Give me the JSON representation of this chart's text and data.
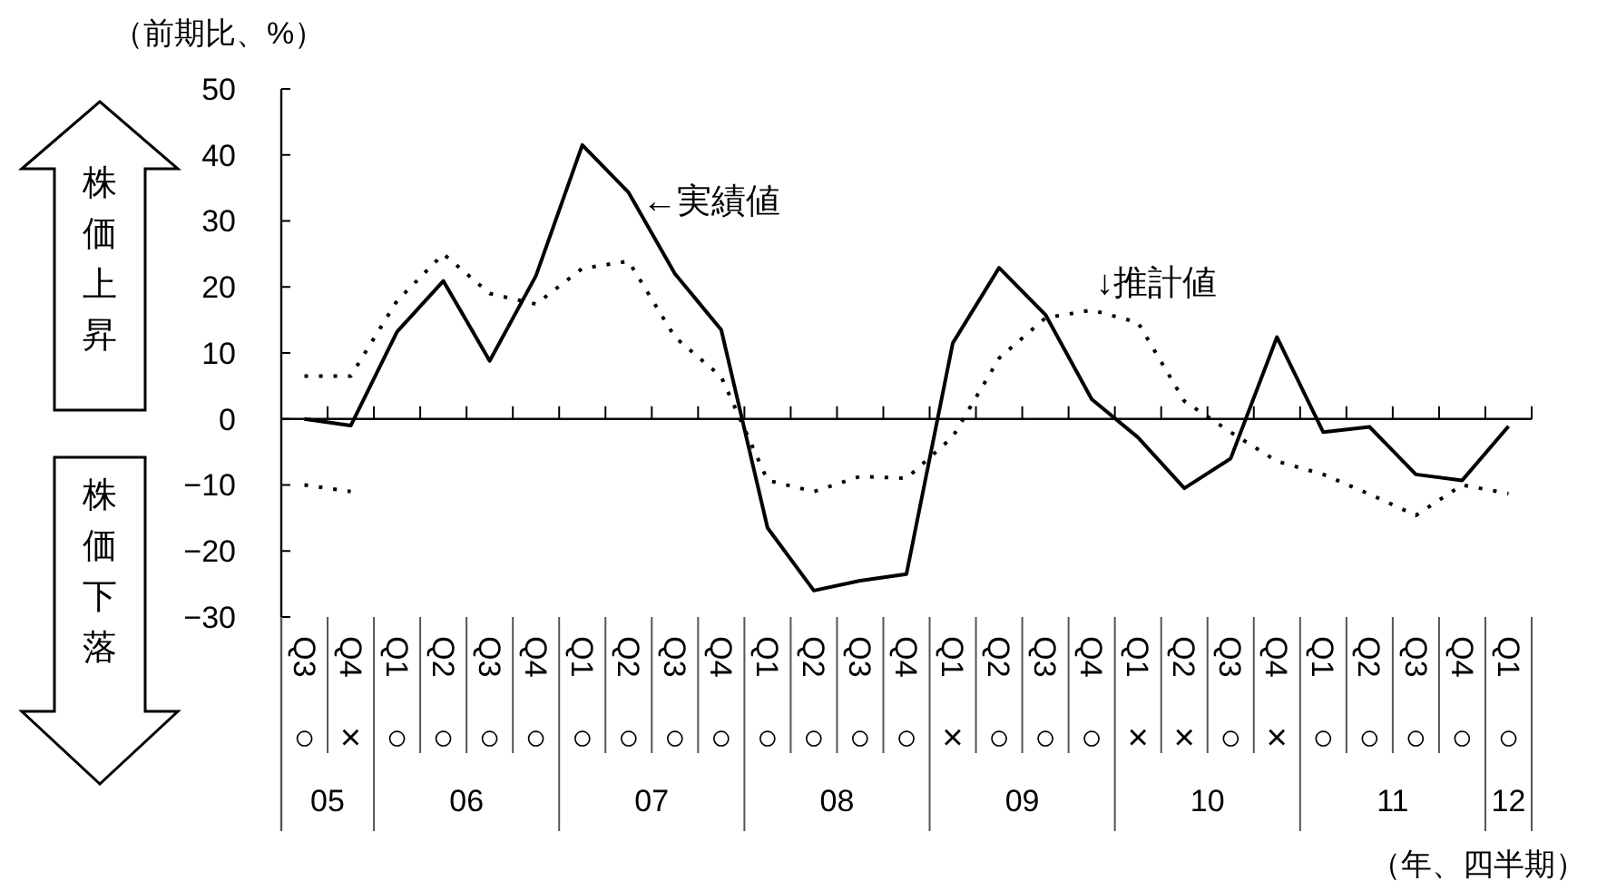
{
  "chart_data": {
    "type": "line",
    "ylabel": "（前期比、%）",
    "categories": [
      "Q3",
      "Q4",
      "Q1",
      "Q2",
      "Q3",
      "Q4",
      "Q1",
      "Q2",
      "Q3",
      "Q4",
      "Q1",
      "Q2",
      "Q3",
      "Q4",
      "Q1",
      "Q2",
      "Q3",
      "Q4",
      "Q1",
      "Q2",
      "Q3",
      "Q4",
      "Q1",
      "Q2",
      "Q3",
      "Q4",
      "Q1"
    ],
    "series": [
      {
        "color": "#000000",
        "line_style": "solid",
        "values": [
          0,
          -1,
          13.2,
          20.9,
          8.8,
          21.7,
          41.5,
          34.3,
          22,
          13.5,
          -16.5,
          -26,
          -24.5,
          -23.5,
          11.5,
          22.9,
          15.8,
          3,
          -2.8,
          -10.5,
          -6,
          12.4,
          -2,
          -1.2,
          -8.4,
          -9.3,
          -1.1
        ]
      },
      {
        "color": "#000000",
        "line_style": "dotted",
        "values": [
          6.5,
          6.5,
          17.9,
          25,
          19,
          17.4,
          22.8,
          23.9,
          12.4,
          6.4,
          -9.3,
          -11,
          -8.7,
          -9,
          -2.7,
          9.2,
          15.3,
          16.5,
          14.6,
          2.7,
          -2,
          -6.4,
          -8.4,
          -11.4,
          -14.6,
          -10,
          -11.3
        ]
      },
      {
        "color": "#000000",
        "line_style": "dotted",
        "values": [
          -10,
          -11,
          null,
          null,
          null,
          null,
          null,
          null,
          null,
          null,
          null,
          null,
          null,
          null,
          null,
          null,
          null,
          null,
          null,
          null,
          null,
          null,
          null,
          null,
          null,
          null,
          null
        ]
      }
    ],
    "ylim": [
      -30,
      50
    ],
    "yticks": [
      -30,
      -20,
      -10,
      0,
      10,
      20,
      30,
      40,
      50
    ],
    "marker": "none",
    "annotations": [
      "←実績値",
      "↓推計値",
      "株価上昇",
      "株価下落",
      "○",
      "×",
      "○",
      "○",
      "○",
      "○",
      "○",
      "○",
      "○",
      "○",
      "○",
      "○",
      "○",
      "○",
      "×",
      "○",
      "○",
      "○",
      "×",
      "×",
      "○",
      "×",
      "○",
      "○",
      "○",
      "○",
      "○",
      "05",
      "06",
      "07",
      "08",
      "09",
      "10",
      "11",
      "12",
      "（年、四半期）"
    ]
  }
}
